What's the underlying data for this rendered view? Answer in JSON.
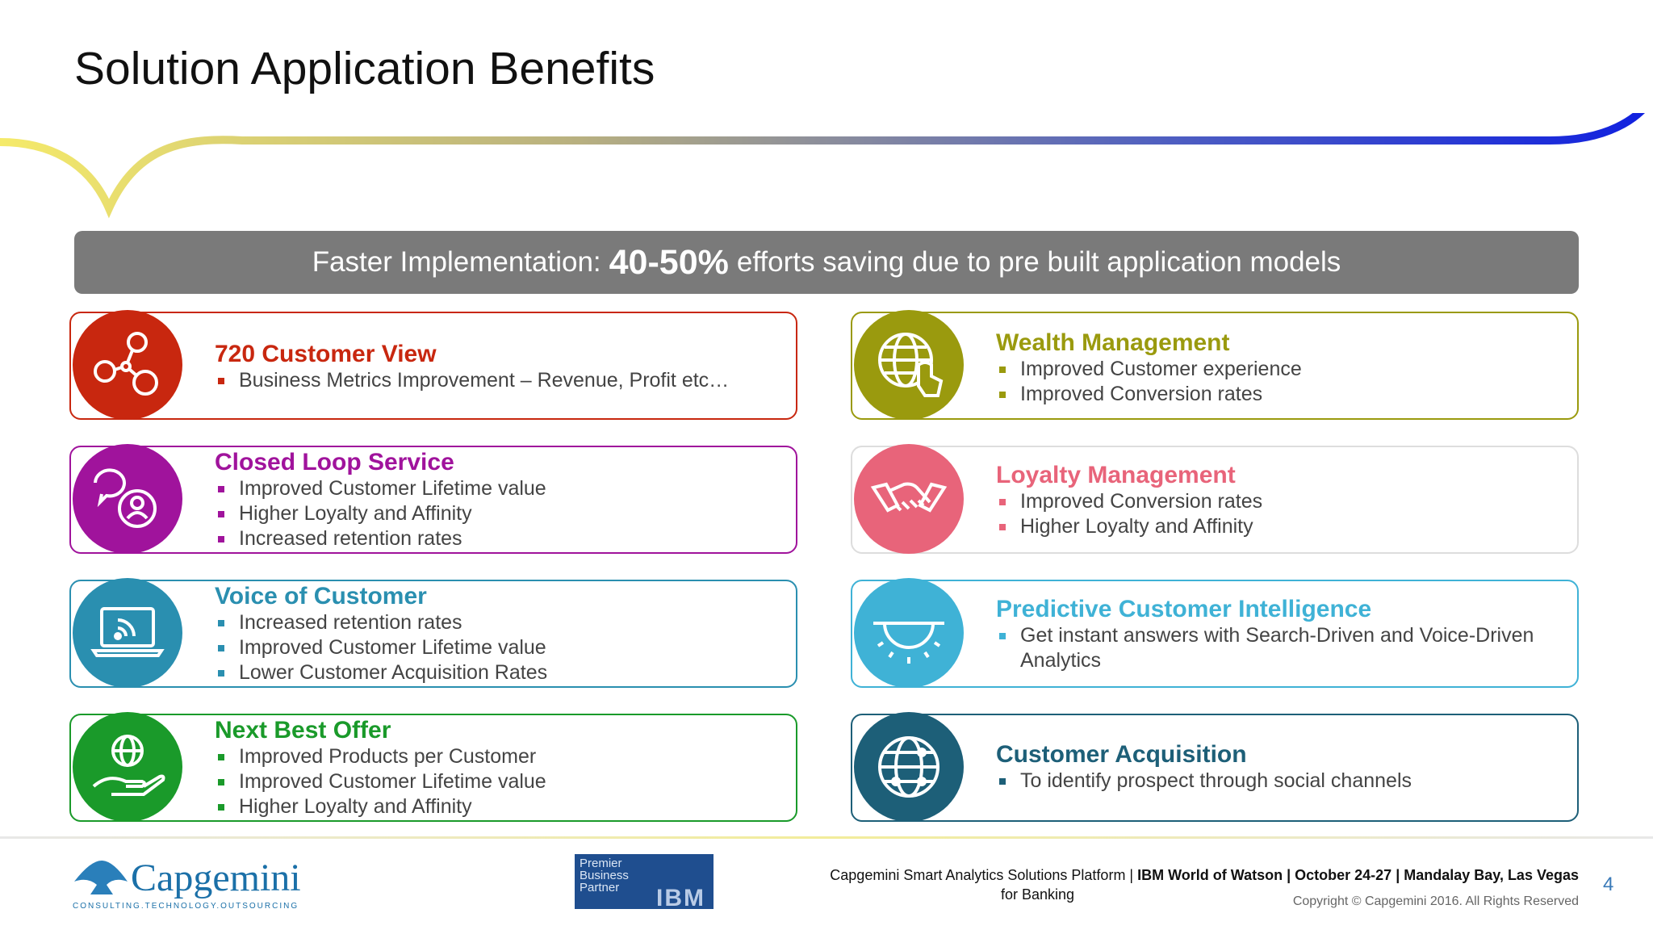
{
  "title": "Solution Application Benefits",
  "banner": {
    "prefix": "Faster Implementation:",
    "highlight": "40-50%",
    "suffix": "efforts saving due to pre built application models"
  },
  "cards": [
    {
      "title": "720 Customer View",
      "color": "#c8270f",
      "icon": "network-nodes-icon",
      "bullets": [
        "Business Metrics Improvement – Revenue, Profit etc…"
      ]
    },
    {
      "title": "Closed Loop Service",
      "color": "#a0139c",
      "icon": "chat-person-icon",
      "bullets": [
        "Improved Customer Lifetime value",
        "Higher Loyalty and Affinity",
        "Increased retention rates"
      ]
    },
    {
      "title": "Voice of Customer",
      "color": "#2a8fb0",
      "icon": "laptop-signal-icon",
      "bullets": [
        "Increased retention rates",
        "Improved Customer Lifetime value",
        "Lower Customer Acquisition Rates"
      ]
    },
    {
      "title": "Next Best Offer",
      "color": "#1a9a2a",
      "icon": "globe-hand-icon",
      "bullets": [
        "Improved Products per Customer",
        "Improved Customer Lifetime value",
        "Higher Loyalty and Affinity"
      ]
    },
    {
      "title": "Wealth Management",
      "color": "#9a9a0e",
      "icon": "globe-touch-icon",
      "bullets": [
        "Improved Customer experience",
        "Improved Conversion rates"
      ]
    },
    {
      "title": "Loyalty Management",
      "color": "#e8647a",
      "icon": "handshake-icon",
      "bullets": [
        "Improved Conversion rates",
        "Higher Loyalty and Affinity"
      ]
    },
    {
      "title": "Predictive Customer Intelligence",
      "color": "#3fb2d6",
      "icon": "lightbulb-icon",
      "bullets": [
        "Get instant answers with Search-Driven and Voice-Driven Analytics"
      ]
    },
    {
      "title": "Customer Acquisition",
      "color": "#1d5f78",
      "icon": "globe-network-icon",
      "bullets": [
        "To identify prospect through social channels"
      ]
    }
  ],
  "footer": {
    "company": "Capgemini",
    "tagline": "CONSULTING.TECHNOLOGY.OUTSOURCING",
    "ibm_badge": [
      "Premier",
      "Business",
      "Partner"
    ],
    "ibm_mark": "IBM",
    "text_line1_a": "Capgemini Smart Analytics Solutions Platform | ",
    "text_line1_b": "IBM World of Watson | October 24-27 | Mandalay Bay, Las Vegas",
    "text_line2": "for Banking",
    "copyright": "Copyright © Capgemini 2016. All Rights Reserved",
    "page_number": "4"
  }
}
